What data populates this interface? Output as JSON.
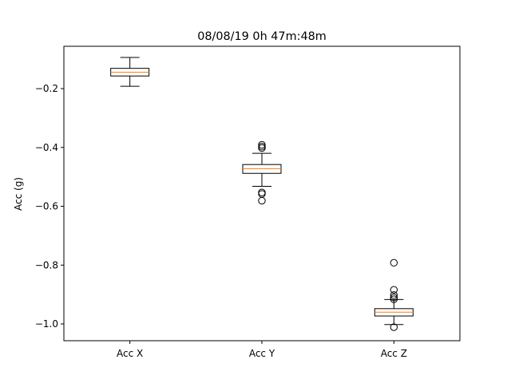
{
  "chart_data": {
    "type": "box",
    "title": "08/08/19 0h 47m:48m",
    "xlabel": "",
    "ylabel": "Acc (g)",
    "ylim": [
      -1.057,
      -0.056
    ],
    "yticks": [
      -0.2,
      -0.4,
      -0.6,
      -0.8,
      -1.0
    ],
    "ytick_labels": [
      "−0.2",
      "−0.4",
      "−0.6",
      "−0.8",
      "−1.0"
    ],
    "grid": false,
    "colors": {
      "box": "#000000",
      "median": "#ff7f0e",
      "frame": "#000000"
    },
    "categories": [
      "Acc X",
      "Acc Y",
      "Acc Z"
    ],
    "boxes": [
      {
        "label": "Acc X",
        "whisker_low": -0.192,
        "q1": -0.157,
        "median": -0.144,
        "q3": -0.131,
        "whisker_high": -0.094,
        "outliers": []
      },
      {
        "label": "Acc Y",
        "whisker_low": -0.532,
        "q1": -0.488,
        "median": -0.472,
        "q3": -0.458,
        "whisker_high": -0.42,
        "outliers": [
          -0.391,
          -0.397,
          -0.402,
          -0.553,
          -0.558,
          -0.581
        ]
      },
      {
        "label": "Acc Z",
        "whisker_low": -1.002,
        "q1": -0.973,
        "median": -0.96,
        "q3": -0.948,
        "whisker_high": -0.917,
        "outliers": [
          -0.792,
          -0.884,
          -0.902,
          -0.91,
          -0.916,
          -1.011
        ]
      }
    ]
  }
}
